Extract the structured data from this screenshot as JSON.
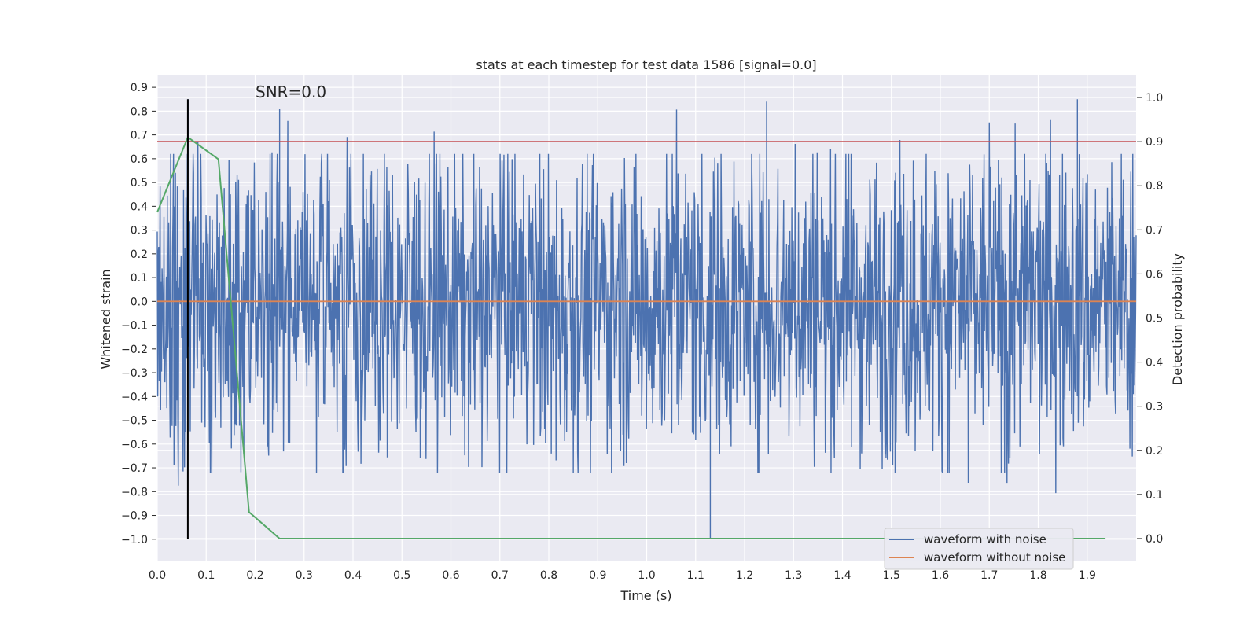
{
  "chart_data": {
    "type": "line",
    "title": "stats at each timestep for test data 1586 [signal=0.0]",
    "annotation": "SNR=0.0",
    "xlabel": "Time (s)",
    "ylabel_left": "Whitened strain",
    "ylabel_right": "Detection probability",
    "xlim": [
      0.0,
      2.0
    ],
    "ylim_left": [
      -1.09,
      0.95
    ],
    "ylim_right": [
      -0.05,
      1.05
    ],
    "x_ticks": [
      "0.0",
      "0.1",
      "0.2",
      "0.3",
      "0.4",
      "0.5",
      "0.6",
      "0.7",
      "0.8",
      "0.9",
      "1.0",
      "1.1",
      "1.2",
      "1.3",
      "1.4",
      "1.5",
      "1.6",
      "1.7",
      "1.8",
      "1.9"
    ],
    "y_left_ticks": [
      "0.9",
      "0.8",
      "0.7",
      "0.6",
      "0.5",
      "0.4",
      "0.3",
      "0.2",
      "0.1",
      "0.0",
      "−0.1",
      "−0.2",
      "−0.3",
      "−0.4",
      "−0.5",
      "−0.6",
      "−0.7",
      "−0.8",
      "−0.9",
      "−1.0"
    ],
    "y_right_ticks": [
      "1.0",
      "0.9",
      "0.8",
      "0.7",
      "0.6",
      "0.5",
      "0.4",
      "0.3",
      "0.2",
      "0.1",
      "0.0"
    ],
    "grid": true,
    "legend_position": "bottom-right",
    "series": [
      {
        "name": "waveform with noise",
        "axis": "left",
        "color": "#4c72b0",
        "kind": "noise",
        "x_range": [
          0.0,
          2.0
        ],
        "y_typical_range": [
          -0.5,
          0.5
        ],
        "y_extremes": [
          -1.0,
          0.85
        ]
      },
      {
        "name": "waveform without noise",
        "axis": "left",
        "color": "#dd8452",
        "x": [
          0.0,
          2.0
        ],
        "y": [
          0.0,
          0.0
        ]
      },
      {
        "axis": "right",
        "color": "#55a868",
        "x": [
          0.0,
          0.0625,
          0.125,
          0.1875,
          0.25,
          0.3125,
          0.5,
          1.0,
          1.5,
          1.9375
        ],
        "y": [
          0.74,
          0.91,
          0.86,
          0.06,
          0.0,
          0.0,
          0.0,
          0.0,
          0.0,
          0.0
        ]
      }
    ],
    "threshold": {
      "axis": "right",
      "value": 0.9,
      "color": "#c44e52"
    },
    "marker_line": {
      "x": 0.0625,
      "y_range": [
        -1.0,
        0.85
      ],
      "color": "#000000"
    }
  }
}
